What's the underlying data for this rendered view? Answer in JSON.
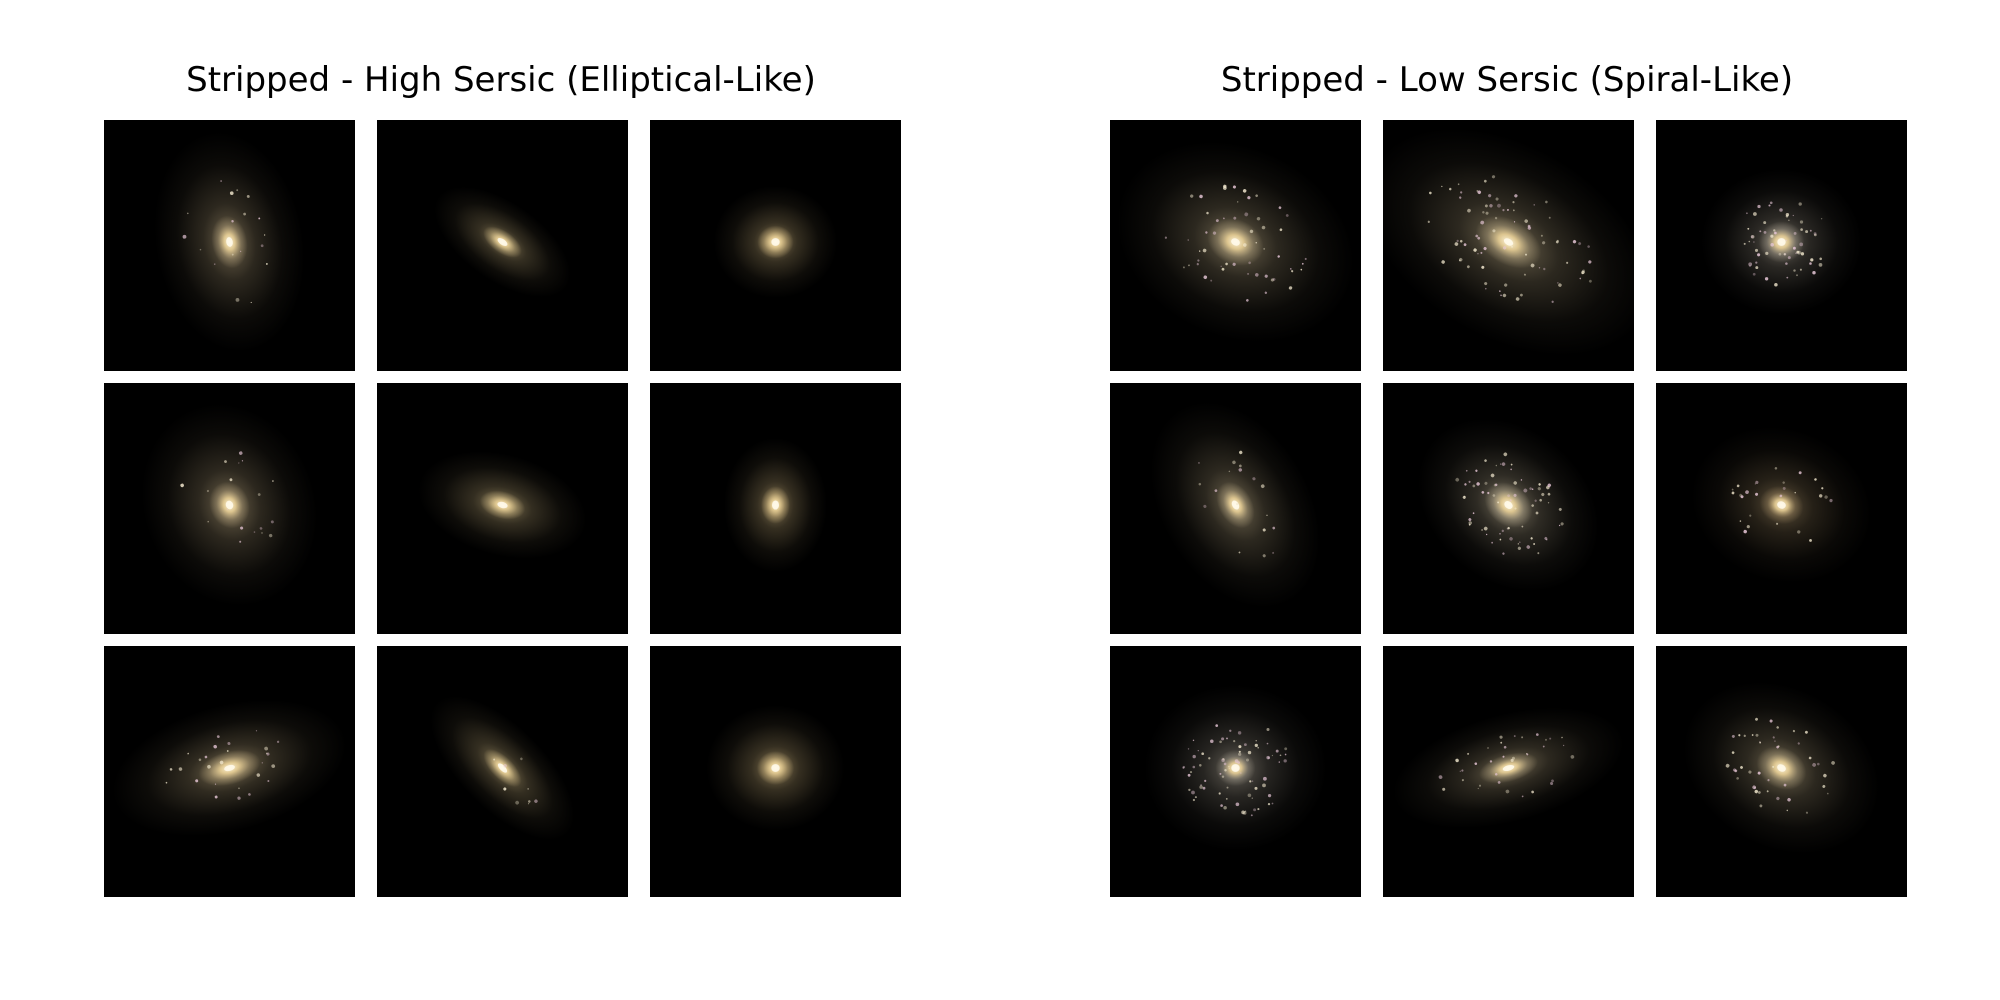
{
  "panels": [
    {
      "title": "Stripped - High Sersic (Elliptical-Like)",
      "galaxies": [
        {
          "type": "compact-core",
          "halo": 0.75,
          "core": 0.45,
          "elong": 1.5,
          "angle": 80,
          "clumpy": 0.2,
          "glow": "#c9b48a"
        },
        {
          "type": "compact-core",
          "halo": 0.25,
          "core": 0.22,
          "elong": 2.0,
          "angle": 35,
          "clumpy": 0.0,
          "glow": "#e8cf94"
        },
        {
          "type": "compact-core",
          "halo": 0.3,
          "core": 0.28,
          "elong": 1.1,
          "angle": 0,
          "clumpy": 0.0,
          "glow": "#f0d394"
        },
        {
          "type": "compact-core",
          "halo": 0.8,
          "core": 0.45,
          "elong": 1.2,
          "angle": 70,
          "clumpy": 0.2,
          "glow": "#c9b48a"
        },
        {
          "type": "compact-core",
          "halo": 0.4,
          "core": 0.3,
          "elong": 1.7,
          "angle": 15,
          "clumpy": 0.0,
          "glow": "#e8cf94"
        },
        {
          "type": "compact-core",
          "halo": 0.3,
          "core": 0.25,
          "elong": 1.3,
          "angle": 90,
          "clumpy": 0.0,
          "glow": "#f0d394"
        },
        {
          "type": "compact-core",
          "halo": 0.7,
          "core": 0.5,
          "elong": 1.9,
          "angle": -15,
          "clumpy": 0.3,
          "glow": "#dcc594"
        },
        {
          "type": "compact-core",
          "halo": 0.35,
          "core": 0.25,
          "elong": 2.2,
          "angle": 45,
          "clumpy": 0.1,
          "glow": "#e8cf94"
        },
        {
          "type": "compact-core",
          "halo": 0.4,
          "core": 0.3,
          "elong": 1.1,
          "angle": 0,
          "clumpy": 0.0,
          "glow": "#f0d394"
        }
      ]
    },
    {
      "title": "Stripped - Low Sersic (Spiral-Like)",
      "galaxies": [
        {
          "type": "diffuse-disk",
          "halo": 1.0,
          "core": 0.6,
          "elong": 1.3,
          "angle": 25,
          "clumpy": 0.6,
          "glow": "#c8b68e"
        },
        {
          "type": "diffuse-disk",
          "halo": 1.2,
          "core": 0.7,
          "elong": 1.6,
          "angle": 30,
          "clumpy": 0.9,
          "glow": "#c8b68e"
        },
        {
          "type": "diffuse-disk",
          "halo": 0.55,
          "core": 0.45,
          "elong": 1.1,
          "angle": 0,
          "clumpy": 0.7,
          "glow": "#bcb2a0"
        },
        {
          "type": "diffuse-disk",
          "halo": 0.75,
          "core": 0.4,
          "elong": 1.5,
          "angle": 60,
          "clumpy": 0.2,
          "glow": "#c8b68e"
        },
        {
          "type": "diffuse-disk",
          "halo": 0.7,
          "core": 0.5,
          "elong": 1.3,
          "angle": 40,
          "clumpy": 0.8,
          "glow": "#d2c4a4"
        },
        {
          "type": "diffuse-disk",
          "halo": 0.65,
          "core": 0.4,
          "elong": 1.2,
          "angle": 20,
          "clumpy": 0.3,
          "glow": "#a89068"
        },
        {
          "type": "diffuse-disk",
          "halo": 0.7,
          "core": 0.35,
          "elong": 1.1,
          "angle": 0,
          "clumpy": 0.9,
          "glow": "#b0a898"
        },
        {
          "type": "diffuse-disk",
          "halo": 0.6,
          "core": 0.4,
          "elong": 2.2,
          "angle": -15,
          "clumpy": 0.4,
          "glow": "#c8b68e"
        },
        {
          "type": "diffuse-disk",
          "halo": 0.75,
          "core": 0.5,
          "elong": 1.3,
          "angle": 30,
          "clumpy": 0.5,
          "glow": "#c8b68e"
        }
      ]
    }
  ]
}
